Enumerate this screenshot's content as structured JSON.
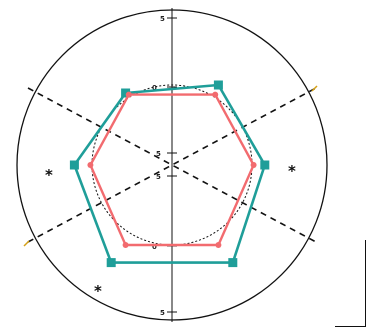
{
  "chart_data": {
    "type": "radar",
    "axis_tick_labels": {
      "top": "5",
      "upper_inner": "0",
      "center_upper": "5",
      "center_lower": "5",
      "lower_inner": "0",
      "bottom": "5"
    },
    "star_labels": [
      "*",
      "*",
      "*"
    ],
    "rings": [
      "outer-circle",
      "dotted-circle"
    ],
    "series": [
      {
        "color": "#1f9e99",
        "marker": "square",
        "points": [
          {
            "x": -1.45,
            "y": 2.25
          },
          {
            "x": 1.45,
            "y": 2.5
          },
          {
            "x": 2.9,
            "y": 0.0
          },
          {
            "x": 1.9,
            "y": -3.05
          },
          {
            "x": -1.9,
            "y": -3.05
          },
          {
            "x": -3.05,
            "y": 0.0
          }
        ]
      },
      {
        "color": "#f26b6f",
        "marker": "diamond",
        "points": [
          {
            "x": -1.35,
            "y": 2.2
          },
          {
            "x": 1.35,
            "y": 2.2
          },
          {
            "x": 2.55,
            "y": 0.0
          },
          {
            "x": 1.45,
            "y": -2.5
          },
          {
            "x": -1.45,
            "y": -2.5
          },
          {
            "x": -2.55,
            "y": 0.0
          }
        ]
      }
    ],
    "colors": {
      "teal": "#1f9e99",
      "coral": "#f26b6f",
      "axis": "#111111",
      "accent_tick": "#d4a017"
    }
  }
}
